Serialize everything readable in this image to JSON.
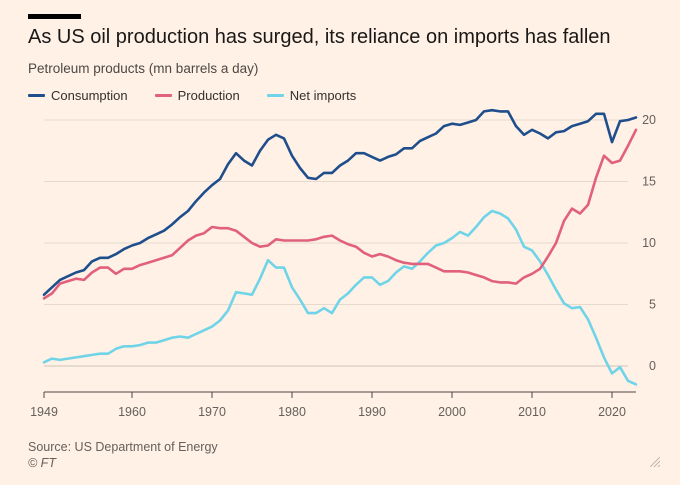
{
  "header": {
    "title": "As US oil production has surged, its reliance on imports has fallen",
    "subtitle": "Petroleum products (mn barrels a day)"
  },
  "footer": {
    "source": "Source: US Department of Energy",
    "copyright": "© FT"
  },
  "chart_data": {
    "type": "line",
    "title": "As US oil production has surged, its reliance on imports has fallen",
    "subtitle": "Petroleum products (mn barrels a day)",
    "xlabel": "",
    "ylabel": "",
    "xlim": [
      1949,
      2023
    ],
    "ylim": [
      -2,
      21
    ],
    "xticks": [
      1949,
      1960,
      1970,
      1980,
      1990,
      2000,
      2010,
      2020
    ],
    "yticks": [
      0,
      5,
      10,
      15,
      20
    ],
    "grid": true,
    "legend_position": "top-left",
    "x": [
      1949,
      1950,
      1951,
      1952,
      1953,
      1954,
      1955,
      1956,
      1957,
      1958,
      1959,
      1960,
      1961,
      1962,
      1963,
      1964,
      1965,
      1966,
      1967,
      1968,
      1969,
      1970,
      1971,
      1972,
      1973,
      1974,
      1975,
      1976,
      1977,
      1978,
      1979,
      1980,
      1981,
      1982,
      1983,
      1984,
      1985,
      1986,
      1987,
      1988,
      1989,
      1990,
      1991,
      1992,
      1993,
      1994,
      1995,
      1996,
      1997,
      1998,
      1999,
      2000,
      2001,
      2002,
      2003,
      2004,
      2005,
      2006,
      2007,
      2008,
      2009,
      2010,
      2011,
      2012,
      2013,
      2014,
      2015,
      2016,
      2017,
      2018,
      2019,
      2020,
      2021,
      2022,
      2023
    ],
    "series": [
      {
        "name": "Consumption",
        "color": "#1f4e8c",
        "values": [
          5.8,
          6.4,
          7.0,
          7.3,
          7.6,
          7.8,
          8.5,
          8.8,
          8.8,
          9.1,
          9.5,
          9.8,
          10.0,
          10.4,
          10.7,
          11.0,
          11.5,
          12.1,
          12.6,
          13.4,
          14.1,
          14.7,
          15.2,
          16.4,
          17.3,
          16.7,
          16.3,
          17.5,
          18.4,
          18.8,
          18.5,
          17.1,
          16.1,
          15.3,
          15.2,
          15.7,
          15.7,
          16.3,
          16.7,
          17.3,
          17.3,
          17.0,
          16.7,
          17.0,
          17.2,
          17.7,
          17.7,
          18.3,
          18.6,
          18.9,
          19.5,
          19.7,
          19.6,
          19.8,
          20.0,
          20.7,
          20.8,
          20.7,
          20.7,
          19.5,
          18.8,
          19.2,
          18.9,
          18.5,
          19.0,
          19.1,
          19.5,
          19.7,
          19.9,
          20.5,
          20.5,
          18.2,
          19.9,
          20.0,
          20.2
        ]
      },
      {
        "name": "Production",
        "color": "#e0607e",
        "values": [
          5.5,
          5.9,
          6.7,
          6.9,
          7.1,
          7.0,
          7.6,
          8.0,
          8.0,
          7.5,
          7.9,
          7.9,
          8.2,
          8.4,
          8.6,
          8.8,
          9.0,
          9.6,
          10.2,
          10.6,
          10.8,
          11.3,
          11.2,
          11.2,
          11.0,
          10.5,
          10.0,
          9.7,
          9.8,
          10.3,
          10.2,
          10.2,
          10.2,
          10.2,
          10.3,
          10.5,
          10.6,
          10.2,
          9.9,
          9.7,
          9.2,
          8.9,
          9.1,
          8.9,
          8.6,
          8.4,
          8.3,
          8.3,
          8.3,
          8.0,
          7.7,
          7.7,
          7.7,
          7.6,
          7.4,
          7.2,
          6.9,
          6.8,
          6.8,
          6.7,
          7.2,
          7.5,
          7.9,
          8.9,
          10.0,
          11.8,
          12.8,
          12.4,
          13.1,
          15.3,
          17.1,
          16.5,
          16.7,
          17.9,
          19.2
        ]
      },
      {
        "name": "Net imports",
        "color": "#70d4e8",
        "values": [
          0.3,
          0.6,
          0.5,
          0.6,
          0.7,
          0.8,
          0.9,
          1.0,
          1.0,
          1.4,
          1.6,
          1.6,
          1.7,
          1.9,
          1.9,
          2.1,
          2.3,
          2.4,
          2.3,
          2.6,
          2.9,
          3.2,
          3.7,
          4.5,
          6.0,
          5.9,
          5.8,
          7.1,
          8.6,
          8.0,
          8.0,
          6.4,
          5.4,
          4.3,
          4.3,
          4.7,
          4.3,
          5.4,
          5.9,
          6.6,
          7.2,
          7.2,
          6.6,
          6.9,
          7.6,
          8.1,
          7.9,
          8.5,
          9.2,
          9.8,
          10.0,
          10.4,
          10.9,
          10.6,
          11.3,
          12.1,
          12.6,
          12.4,
          12.0,
          11.1,
          9.7,
          9.4,
          8.5,
          7.4,
          6.2,
          5.1,
          4.7,
          4.8,
          3.8,
          2.3,
          0.7,
          -0.6,
          -0.1,
          -1.2,
          -1.5
        ]
      }
    ]
  }
}
